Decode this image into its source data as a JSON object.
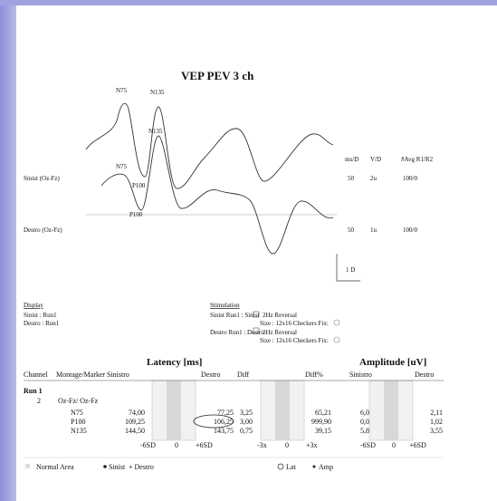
{
  "header": {
    "title": "VEP  PEV 3 ch"
  },
  "waveform": {
    "peaks": [
      "N75",
      "N135",
      "N135",
      "N75",
      "P100",
      "P100"
    ],
    "channels": [
      "Sinist (Oz-Fz)",
      "Destro (Oz-Fz)"
    ],
    "columns": [
      "ms/D",
      "V/D",
      "#Avg R1/R2"
    ],
    "rows": [
      [
        "50",
        "2u",
        "100/0"
      ],
      [
        "50",
        "1u",
        "100/0"
      ]
    ],
    "scale": "1 D"
  },
  "display": {
    "title": "Display",
    "lines": [
      "Sinist  : Run1",
      "Destro  : Run1"
    ]
  },
  "stimulation": {
    "title": "Stimulation",
    "lines": [
      "Sinist  Run1  :  Sinist",
      "2Hz Reversal",
      "Size : 12x16 Checkers  Fix:",
      "Destro  Run1  :  Destro",
      "2Hz Reversal",
      "Size : 12x16 Checkers  Fix:"
    ]
  },
  "table": {
    "groups": [
      "Latency [ms]",
      "Amplitude [uV]"
    ],
    "header": [
      "Channel",
      "Montage/Marker",
      "Sinistro",
      "Destro",
      "Diff",
      "Diff%",
      "Sinistro",
      "Destro"
    ],
    "run": "Run 1",
    "channel": "2",
    "montage": "Oz-Fz/ Oz-Fz",
    "rows": [
      [
        "N75",
        "74,00",
        "77,25",
        "3,25",
        "65,21",
        "6,07",
        "2,11"
      ],
      [
        "P100",
        "109,25",
        "106,25",
        "3,00",
        "999,90",
        "0,06",
        "1,02"
      ],
      [
        "N135",
        "144,50",
        "143,75",
        "0,75",
        "39,15",
        "5,84",
        "3,55"
      ]
    ],
    "scale": [
      "-6SD",
      "0",
      "+6SD",
      "-3x",
      "0",
      "+3x",
      "-6SD",
      "0",
      "+6SD"
    ]
  },
  "legend": [
    "Normal Area",
    "Sinist",
    "+ Destro",
    "Lat",
    "Amp"
  ]
}
